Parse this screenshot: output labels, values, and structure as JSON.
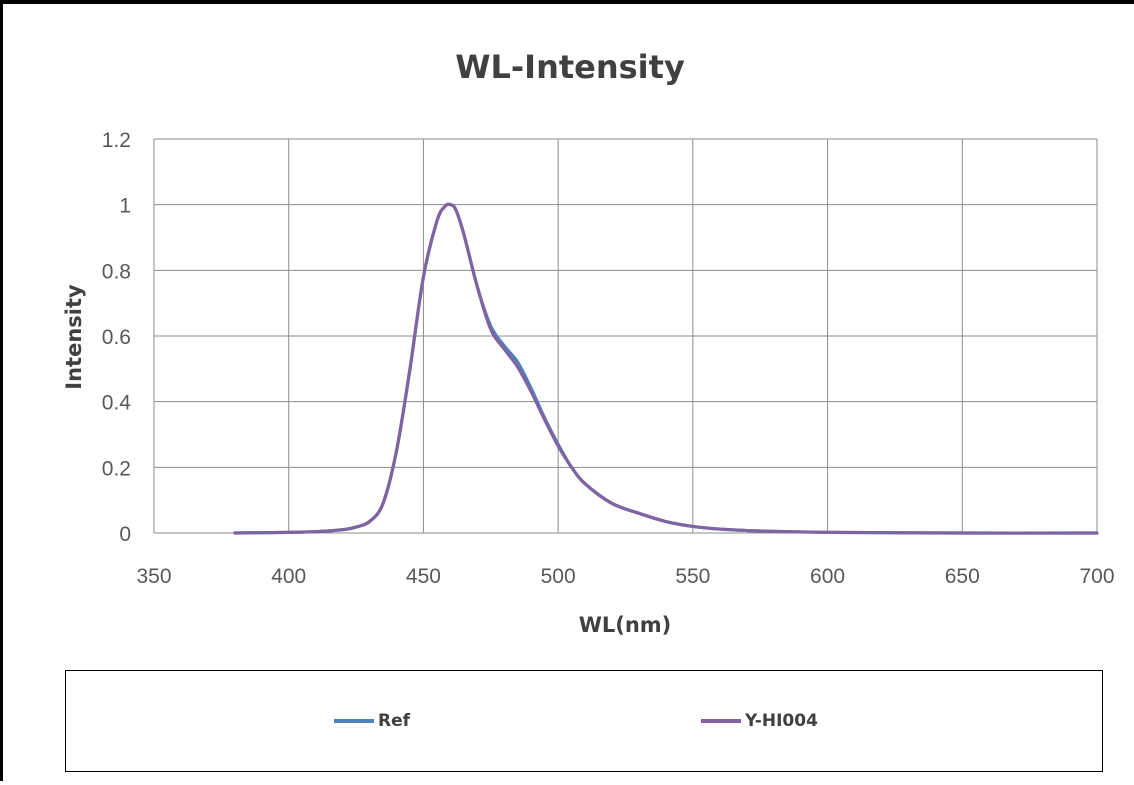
{
  "chart_data": {
    "type": "line",
    "title": "WL-Intensity",
    "xlabel": "WL(nm)",
    "ylabel": "Intensity",
    "xlim": [
      350,
      700
    ],
    "ylim": [
      0,
      1.2
    ],
    "xticks": [
      "350",
      "400",
      "450",
      "500",
      "550",
      "600",
      "650",
      "700"
    ],
    "yticks": [
      "0",
      "0.2",
      "0.4",
      "0.6",
      "0.8",
      "1",
      "1.2"
    ],
    "grid": true,
    "legend_position": "bottom",
    "series": [
      {
        "name": "Ref",
        "color": "#4f81bd",
        "x": [
          380,
          400,
          410,
          420,
          425,
          430,
          435,
          440,
          445,
          450,
          455,
          458,
          460,
          462,
          465,
          470,
          475,
          480,
          485,
          490,
          495,
          500,
          505,
          510,
          520,
          530,
          540,
          550,
          560,
          575,
          600,
          650,
          700
        ],
        "y": [
          0.0,
          0.002,
          0.004,
          0.01,
          0.018,
          0.035,
          0.09,
          0.25,
          0.5,
          0.78,
          0.95,
          0.995,
          1.0,
          0.985,
          0.91,
          0.75,
          0.63,
          0.57,
          0.52,
          0.44,
          0.35,
          0.27,
          0.2,
          0.15,
          0.09,
          0.06,
          0.035,
          0.02,
          0.012,
          0.006,
          0.002,
          0.0,
          0.0
        ]
      },
      {
        "name": "Y-HI004",
        "color": "#8064a2",
        "x": [
          380,
          400,
          410,
          420,
          425,
          430,
          435,
          440,
          445,
          450,
          455,
          458,
          460,
          462,
          465,
          470,
          475,
          480,
          485,
          490,
          495,
          500,
          505,
          510,
          520,
          530,
          540,
          550,
          560,
          575,
          600,
          650,
          700
        ],
        "y": [
          0.0,
          0.002,
          0.004,
          0.01,
          0.018,
          0.035,
          0.09,
          0.25,
          0.5,
          0.78,
          0.95,
          0.995,
          1.0,
          0.985,
          0.91,
          0.75,
          0.62,
          0.56,
          0.505,
          0.43,
          0.345,
          0.265,
          0.2,
          0.15,
          0.09,
          0.06,
          0.035,
          0.02,
          0.012,
          0.006,
          0.002,
          0.0,
          0.0
        ]
      }
    ]
  }
}
